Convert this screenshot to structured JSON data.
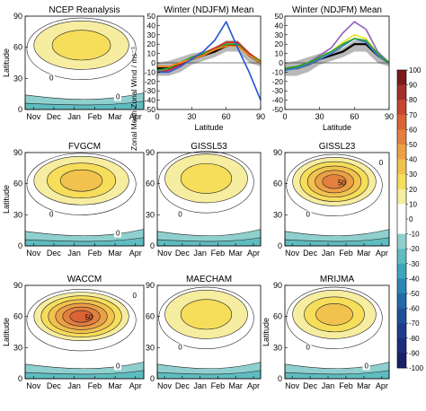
{
  "chart_data": [
    {
      "type": "heatmap",
      "title": "NCEP Reanalysis",
      "ylabel": "Latitude",
      "x_ticks": [
        "Nov",
        "Dec",
        "Jan",
        "Feb",
        "Mar",
        "Apr"
      ],
      "y_ticks": [
        "0",
        "30",
        "60",
        "90"
      ],
      "ylim": [
        0,
        90
      ],
      "contour_labels": [
        "0",
        "0"
      ],
      "jet": {
        "month": "Jan",
        "lat": 62,
        "max": 20
      }
    },
    {
      "type": "line",
      "title": "Winter (NDJFM) Mean",
      "xlabel": "Latitude",
      "ylabel": "Zonal Mean Zonal Wind / ms⁻¹",
      "x_ticks": [
        "0",
        "30",
        "60",
        "90"
      ],
      "y_ticks": [
        "-50",
        "-40",
        "-30",
        "-20",
        "-10",
        "0",
        "10",
        "20",
        "30",
        "40",
        "50"
      ],
      "xlim": [
        0,
        90
      ],
      "ylim": [
        -50,
        50
      ],
      "x": [
        0,
        10,
        20,
        30,
        40,
        50,
        60,
        70,
        80,
        90
      ],
      "band": {
        "lower": [
          -14,
          -14,
          -10,
          -2,
          2,
          6,
          12,
          12,
          0,
          -4
        ],
        "upper": [
          0,
          2,
          6,
          10,
          12,
          16,
          24,
          24,
          12,
          2
        ]
      },
      "series": [
        {
          "color": "#000000",
          "values": [
            -6,
            -6,
            -2,
            4,
            8,
            12,
            18,
            20,
            8,
            0
          ]
        },
        {
          "color": "#d62728",
          "values": [
            -10,
            -8,
            -2,
            6,
            10,
            16,
            22,
            22,
            10,
            2
          ]
        },
        {
          "color": "#2ca02c",
          "values": [
            -8,
            -6,
            0,
            6,
            10,
            14,
            20,
            20,
            8,
            2
          ]
        },
        {
          "color": "#ff7f0e",
          "values": [
            -4,
            -4,
            0,
            4,
            8,
            14,
            18,
            18,
            8,
            0
          ]
        },
        {
          "color": "#2a5bd7",
          "values": [
            -10,
            -10,
            -4,
            4,
            12,
            24,
            44,
            16,
            -10,
            -40
          ]
        }
      ]
    },
    {
      "type": "line",
      "title": "Winter (NDJFM) Mean",
      "xlabel": "Latitude",
      "x_ticks": [
        "0",
        "30",
        "60",
        "90"
      ],
      "y_ticks": [
        "-50",
        "-40",
        "-30",
        "-20",
        "-10",
        "0",
        "10",
        "20",
        "30",
        "40",
        "50"
      ],
      "xlim": [
        0,
        90
      ],
      "ylim": [
        -50,
        50
      ],
      "x": [
        0,
        10,
        20,
        30,
        40,
        50,
        60,
        70,
        80,
        90
      ],
      "band": {
        "lower": [
          -14,
          -14,
          -10,
          -2,
          2,
          6,
          12,
          12,
          0,
          -4
        ],
        "upper": [
          0,
          2,
          6,
          10,
          12,
          16,
          24,
          24,
          12,
          2
        ]
      },
      "series": [
        {
          "color": "#000000",
          "values": [
            -6,
            -6,
            -2,
            4,
            8,
            12,
            20,
            20,
            8,
            0
          ]
        },
        {
          "color": "#9467bd",
          "values": [
            -6,
            -4,
            0,
            8,
            16,
            32,
            44,
            36,
            12,
            0
          ]
        },
        {
          "color": "#e8e82a",
          "values": [
            -6,
            -4,
            0,
            6,
            12,
            22,
            30,
            26,
            10,
            0
          ]
        },
        {
          "color": "#3b7dd8",
          "values": [
            -8,
            -6,
            -2,
            4,
            10,
            18,
            26,
            22,
            8,
            0
          ]
        },
        {
          "color": "#2ca02c",
          "values": [
            -6,
            -4,
            0,
            6,
            12,
            20,
            26,
            24,
            10,
            0
          ]
        }
      ]
    },
    {
      "type": "heatmap",
      "title": "FVGCM",
      "ylabel": "Latitude",
      "x_ticks": [
        "Nov",
        "Dec",
        "Jan",
        "Feb",
        "Mar",
        "Apr"
      ],
      "y_ticks": [
        "0",
        "30",
        "60",
        "90"
      ],
      "ylim": [
        0,
        90
      ],
      "contour_labels": [
        "0",
        "0"
      ],
      "jet": {
        "month": "Jan",
        "lat": 63,
        "max": 30
      }
    },
    {
      "type": "heatmap",
      "title": "GISSL53",
      "x_ticks": [
        "Nov",
        "Dec",
        "Jan",
        "Feb",
        "Mar",
        "Apr"
      ],
      "y_ticks": [
        "0",
        "30",
        "60",
        "90"
      ],
      "ylim": [
        0,
        90
      ],
      "contour_labels": [
        "0"
      ],
      "jet": {
        "month": "Jan",
        "lat": 65,
        "max": 20
      }
    },
    {
      "type": "heatmap",
      "title": "GISSL23",
      "x_ticks": [
        "Nov",
        "Dec",
        "Jan",
        "Feb",
        "Mar",
        "Apr"
      ],
      "y_ticks": [
        "0",
        "30",
        "60",
        "90"
      ],
      "ylim": [
        0,
        90
      ],
      "contour_labels": [
        "0",
        "50",
        "0"
      ],
      "jet": {
        "month": "Jan",
        "lat": 62,
        "max": 50
      }
    },
    {
      "type": "heatmap",
      "title": "WACCM",
      "ylabel": "Latitude",
      "x_ticks": [
        "Nov",
        "Dec",
        "Jan",
        "Feb",
        "Mar",
        "Apr"
      ],
      "y_ticks": [
        "0",
        "30",
        "60",
        "90"
      ],
      "ylim": [
        0,
        90
      ],
      "contour_labels": [
        "50",
        "0",
        "0"
      ],
      "jet": {
        "month": "Jan",
        "lat": 60,
        "max": 60
      }
    },
    {
      "type": "heatmap",
      "title": "MAECHAM",
      "x_ticks": [
        "Nov",
        "Dec",
        "Jan",
        "Feb",
        "Mar",
        "Apr"
      ],
      "y_ticks": [
        "0",
        "30",
        "60",
        "90"
      ],
      "ylim": [
        0,
        90
      ],
      "contour_labels": [
        "0"
      ],
      "jet": {
        "month": "Jan",
        "lat": 62,
        "max": 20
      }
    },
    {
      "type": "heatmap",
      "title": "MRIJMA",
      "ylabel": "Latitude",
      "x_ticks": [
        "Nov",
        "Dec",
        "Jan",
        "Feb",
        "Mar",
        "Apr"
      ],
      "y_ticks": [
        "0",
        "30",
        "60",
        "90"
      ],
      "ylim": [
        0,
        90
      ],
      "contour_labels": [
        "0",
        "0"
      ],
      "jet": {
        "month": "Jan",
        "lat": 62,
        "max": 30
      }
    }
  ],
  "colorbar": {
    "ticks": [
      "100",
      "90",
      "80",
      "70",
      "60",
      "50",
      "40",
      "30",
      "20",
      "10",
      "0",
      "-10",
      "-20",
      "-30",
      "-40",
      "-50",
      "-60",
      "-70",
      "-80",
      "-90",
      "-100"
    ],
    "colors": [
      "#7a1a1a",
      "#a0302a",
      "#c6452e",
      "#da6336",
      "#e3803e",
      "#eba046",
      "#f1c24e",
      "#f6dd5a",
      "#f7eda0",
      "#ffffff",
      "#ffffff",
      "#8fd0cf",
      "#5fbcc0",
      "#3ea5bb",
      "#2a86b3",
      "#236aa7",
      "#1f4f9a",
      "#1d3c8c",
      "#1b2d7b",
      "#182068"
    ]
  }
}
